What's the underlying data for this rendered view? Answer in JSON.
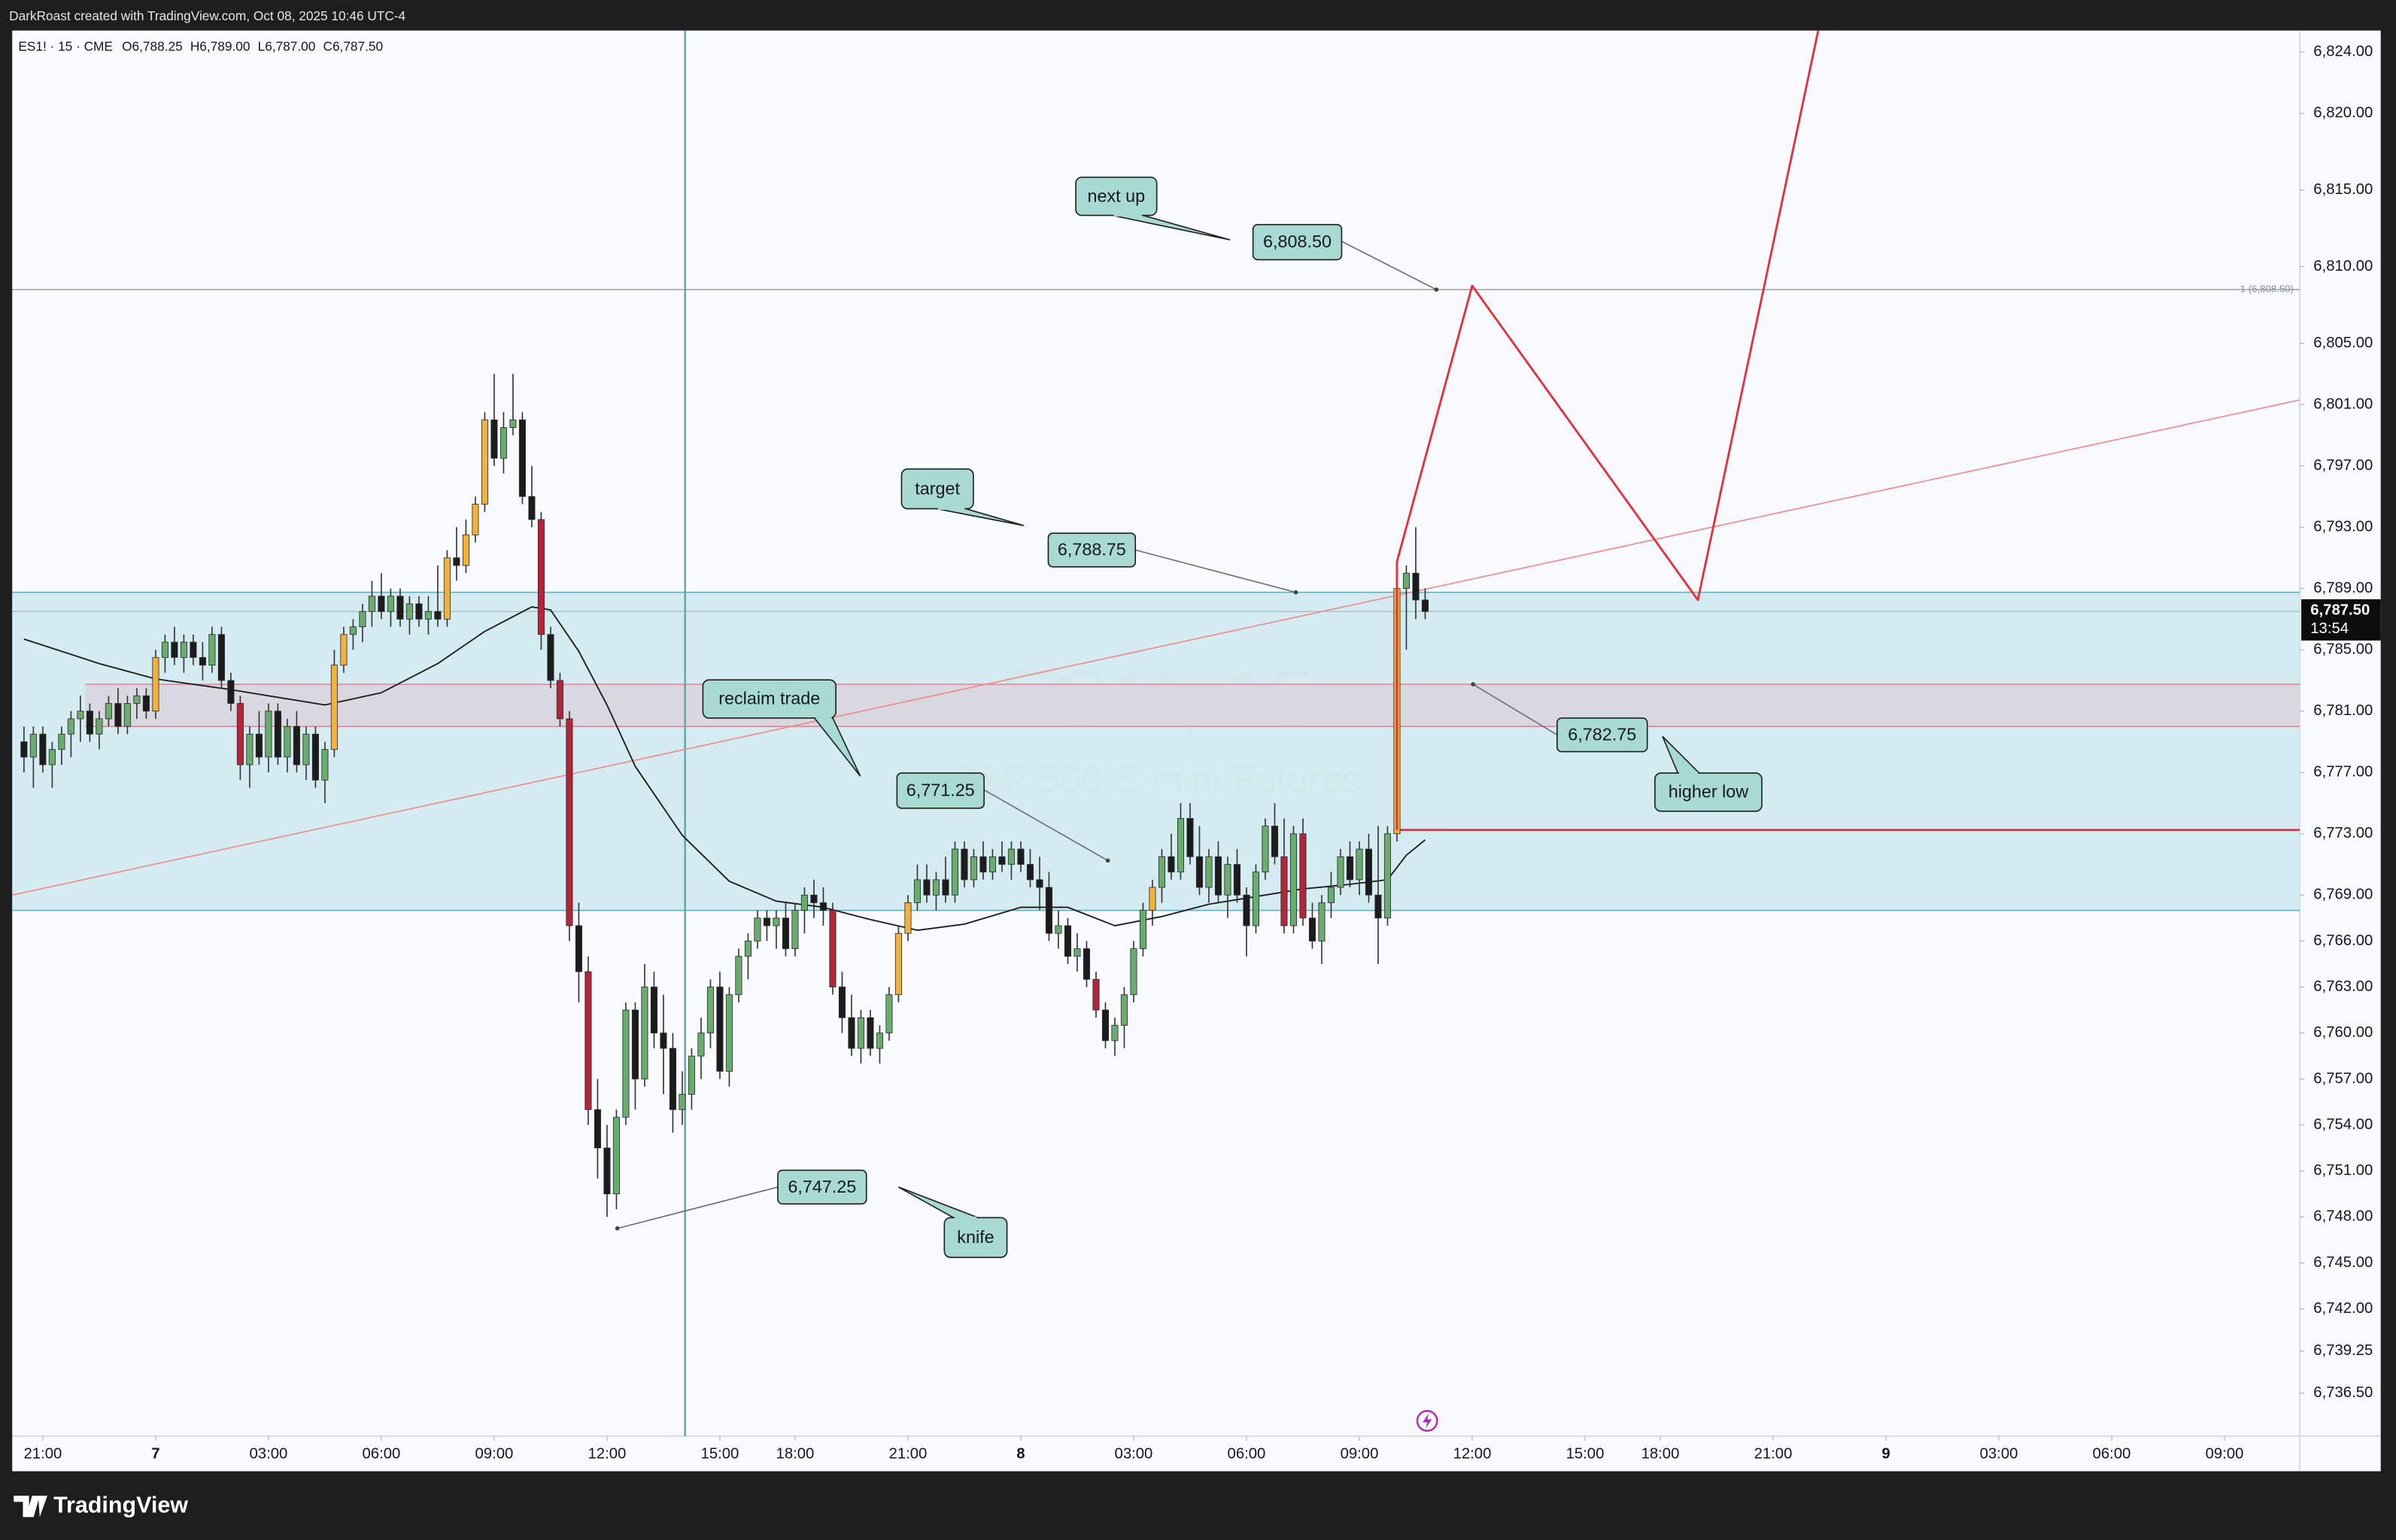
{
  "header": {
    "text": "DarkRoast created with TradingView.com, Oct 08, 2025 10:46 UTC-4"
  },
  "footer": {
    "brand": "TradingView"
  },
  "chart_data": {
    "type": "candlestick",
    "symbol_legend": "ES1! · 15 · CME",
    "ohlc_labels": [
      "O6,788.25",
      "H6,789.00",
      "L6,787.00",
      "C6,787.50"
    ],
    "watermark_symbol": "ES1!, 15",
    "watermark_name": "S&P 500 E-mini Futures",
    "up_color": "#6aab6e",
    "down_color": "#1c1c1c",
    "candles": [
      [
        6779,
        6780,
        6777,
        6778
      ],
      [
        6778,
        6780,
        6776,
        6779.5
      ],
      [
        6779.5,
        6780,
        6777,
        6777.5
      ],
      [
        6777.5,
        6779,
        6776,
        6778.5
      ],
      [
        6778.5,
        6780,
        6777.5,
        6779.5
      ],
      [
        6779.5,
        6781,
        6778,
        6780.5
      ],
      [
        6780.5,
        6782,
        6779,
        6781
      ],
      [
        6781,
        6781.5,
        6779,
        6779.5
      ],
      [
        6779.5,
        6781,
        6778.5,
        6780.5
      ],
      [
        6780.5,
        6782,
        6780,
        6781.5
      ],
      [
        6781.5,
        6782.5,
        6779.5,
        6780
      ],
      [
        6780,
        6782,
        6779.5,
        6781.5
      ],
      [
        6781.5,
        6782.5,
        6780.5,
        6782
      ],
      [
        6782,
        6782.5,
        6780.5,
        6781
      ],
      [
        6781,
        6785,
        6780.5,
        6784.5
      ],
      [
        6784.5,
        6786,
        6783.5,
        6785.5
      ],
      [
        6785.5,
        6786.5,
        6784,
        6784.5
      ],
      [
        6784.5,
        6786,
        6783.5,
        6785.5
      ],
      [
        6785.5,
        6786,
        6784,
        6784.5
      ],
      [
        6784.5,
        6785.5,
        6783,
        6784
      ],
      [
        6784,
        6786.5,
        6783.5,
        6786
      ],
      [
        6786,
        6786.5,
        6782.5,
        6783
      ],
      [
        6783,
        6783.5,
        6781,
        6781.5
      ],
      [
        6781.5,
        6782,
        6776.5,
        6777.5
      ],
      [
        6777.5,
        6780,
        6776,
        6779.5
      ],
      [
        6779.5,
        6781,
        6777.5,
        6778
      ],
      [
        6778,
        6781.5,
        6777,
        6781
      ],
      [
        6781,
        6781.5,
        6777.5,
        6778
      ],
      [
        6778,
        6780.5,
        6777,
        6780
      ],
      [
        6780,
        6781,
        6777,
        6777.5
      ],
      [
        6777.5,
        6780,
        6776.5,
        6779.5
      ],
      [
        6779.5,
        6780,
        6776,
        6776.5
      ],
      [
        6776.5,
        6779,
        6775,
        6778.5
      ],
      [
        6778.5,
        6785,
        6778,
        6784
      ],
      [
        6784,
        6786.5,
        6783.5,
        6786
      ],
      [
        6786,
        6787,
        6785,
        6786.5
      ],
      [
        6786.5,
        6788,
        6785.5,
        6787.5
      ],
      [
        6787.5,
        6789.5,
        6786.5,
        6788.5
      ],
      [
        6788.5,
        6790,
        6787,
        6787.5
      ],
      [
        6787.5,
        6789,
        6786.5,
        6788.5
      ],
      [
        6788.5,
        6789,
        6786.5,
        6787
      ],
      [
        6787,
        6788.5,
        6786,
        6788
      ],
      [
        6788,
        6788.5,
        6786.5,
        6787
      ],
      [
        6787,
        6788.5,
        6786,
        6787.5
      ],
      [
        6787.5,
        6790.5,
        6786.5,
        6787
      ],
      [
        6787,
        6791.5,
        6786.5,
        6791
      ],
      [
        6791,
        6793,
        6789.5,
        6790.5
      ],
      [
        6790.5,
        6793.5,
        6790,
        6792.5
      ],
      [
        6792.5,
        6795,
        6792,
        6794.5
      ],
      [
        6794.5,
        6800.5,
        6794,
        6800
      ],
      [
        6800,
        6803,
        6797,
        6797.5
      ],
      [
        6797.5,
        6800.5,
        6796.5,
        6799.5
      ],
      [
        6799.5,
        6803,
        6799,
        6800
      ],
      [
        6800,
        6800.5,
        6794.5,
        6795
      ],
      [
        6795,
        6797,
        6793,
        6793.5
      ],
      [
        6793.5,
        6794,
        6785,
        6786
      ],
      [
        6786,
        6786.5,
        6782.5,
        6783
      ],
      [
        6783,
        6783.5,
        6780,
        6780.5
      ],
      [
        6780.5,
        6781,
        6766,
        6767
      ],
      [
        6767,
        6768.5,
        6762,
        6764
      ],
      [
        6764,
        6765,
        6754,
        6755
      ],
      [
        6755,
        6757,
        6750.5,
        6752.5
      ],
      [
        6752.5,
        6754,
        6748,
        6749.5
      ],
      [
        6749.5,
        6755,
        6748.5,
        6754.5
      ],
      [
        6754.5,
        6762,
        6754,
        6761.5
      ],
      [
        6761.5,
        6762,
        6755,
        6757
      ],
      [
        6757,
        6764.5,
        6756.5,
        6763
      ],
      [
        6763,
        6764,
        6759,
        6760
      ],
      [
        6760,
        6762.5,
        6756,
        6759
      ],
      [
        6759,
        6760,
        6753.5,
        6755
      ],
      [
        6755,
        6757.5,
        6754,
        6756
      ],
      [
        6756,
        6759,
        6755,
        6758.5
      ],
      [
        6758.5,
        6761,
        6757,
        6760
      ],
      [
        6760,
        6763.5,
        6759,
        6763
      ],
      [
        6763,
        6764,
        6757,
        6757.5
      ],
      [
        6757.5,
        6763,
        6756.5,
        6762.5
      ],
      [
        6762.5,
        6765.5,
        6762,
        6765
      ],
      [
        6765,
        6766.5,
        6763.5,
        6766
      ],
      [
        6766,
        6768,
        6765.5,
        6767.5
      ],
      [
        6767.5,
        6768,
        6766,
        6767
      ],
      [
        6767,
        6768,
        6765.5,
        6767.5
      ],
      [
        6767.5,
        6768.5,
        6765,
        6765.5
      ],
      [
        6765.5,
        6768.5,
        6765,
        6768
      ],
      [
        6768,
        6769.5,
        6766.5,
        6769
      ],
      [
        6769,
        6770,
        6767.5,
        6768.5
      ],
      [
        6768.5,
        6769.5,
        6767,
        6768
      ],
      [
        6768,
        6768.5,
        6762.5,
        6763
      ],
      [
        6763,
        6764,
        6760,
        6761
      ],
      [
        6761,
        6762.5,
        6758.5,
        6759
      ],
      [
        6759,
        6761.5,
        6758,
        6761
      ],
      [
        6761,
        6761.5,
        6758.5,
        6759
      ],
      [
        6759,
        6760.5,
        6758,
        6760
      ],
      [
        6760,
        6763,
        6759.5,
        6762.5
      ],
      [
        6762.5,
        6767,
        6762,
        6766.5
      ],
      [
        6766.5,
        6769,
        6766,
        6768.5
      ],
      [
        6768.5,
        6771,
        6768,
        6770
      ],
      [
        6770,
        6771,
        6768.5,
        6769
      ],
      [
        6769,
        6770.5,
        6768,
        6770
      ],
      [
        6770,
        6771.5,
        6768.5,
        6769
      ],
      [
        6769,
        6772.5,
        6768.5,
        6772
      ],
      [
        6772,
        6772.5,
        6769.5,
        6770
      ],
      [
        6770,
        6772,
        6769.5,
        6771.5
      ],
      [
        6771.5,
        6772.5,
        6770,
        6770.5
      ],
      [
        6770.5,
        6772,
        6770,
        6771.5
      ],
      [
        6771.5,
        6772.5,
        6770.5,
        6771
      ],
      [
        6771,
        6772.5,
        6770,
        6772
      ],
      [
        6772,
        6772.5,
        6770.5,
        6771
      ],
      [
        6771,
        6772,
        6769.5,
        6770
      ],
      [
        6770,
        6771.5,
        6768,
        6769.5
      ],
      [
        6769.5,
        6770.5,
        6766,
        6766.5
      ],
      [
        6766.5,
        6768,
        6765.5,
        6767
      ],
      [
        6767,
        6767.5,
        6764.5,
        6765
      ],
      [
        6765,
        6766.5,
        6764,
        6765.5
      ],
      [
        6765.5,
        6766,
        6763,
        6763.5
      ],
      [
        6763.5,
        6764,
        6761,
        6761.5
      ],
      [
        6761.5,
        6762,
        6759,
        6759.5
      ],
      [
        6759.5,
        6761,
        6758.5,
        6760.5
      ],
      [
        6760.5,
        6763,
        6759,
        6762.5
      ],
      [
        6762.5,
        6766,
        6762,
        6765.5
      ],
      [
        6765.5,
        6768.5,
        6765,
        6768
      ],
      [
        6768,
        6770,
        6767,
        6769.5
      ],
      [
        6769.5,
        6772,
        6768.5,
        6771.5
      ],
      [
        6771.5,
        6773,
        6770,
        6770.5
      ],
      [
        6770.5,
        6775,
        6770,
        6774
      ],
      [
        6774,
        6775,
        6771,
        6771.5
      ],
      [
        6771.5,
        6773.5,
        6769,
        6769.5
      ],
      [
        6769.5,
        6772,
        6768.5,
        6771.5
      ],
      [
        6771.5,
        6772.5,
        6768.5,
        6769
      ],
      [
        6769,
        6771.5,
        6767.5,
        6771
      ],
      [
        6771,
        6772,
        6768.5,
        6769
      ],
      [
        6769,
        6769.5,
        6765,
        6767
      ],
      [
        6767,
        6771,
        6766.5,
        6770.5
      ],
      [
        6770.5,
        6774,
        6770,
        6773.5
      ],
      [
        6773.5,
        6775,
        6771,
        6771.5
      ],
      [
        6771.5,
        6774,
        6766.5,
        6767
      ],
      [
        6767,
        6773.5,
        6766.5,
        6773
      ],
      [
        6773,
        6774,
        6767,
        6767.5
      ],
      [
        6767.5,
        6768.5,
        6765.5,
        6766
      ],
      [
        6766,
        6769,
        6764.5,
        6768.5
      ],
      [
        6768.5,
        6770.5,
        6767.5,
        6769.5
      ],
      [
        6769.5,
        6772,
        6769,
        6771.5
      ],
      [
        6771.5,
        6772.5,
        6769.5,
        6770
      ],
      [
        6770,
        6772.5,
        6769,
        6772
      ],
      [
        6772,
        6773,
        6768.5,
        6769
      ],
      [
        6769,
        6773.5,
        6764.5,
        6767.5
      ],
      [
        6767.5,
        6773.5,
        6767,
        6773
      ],
      [
        6773,
        6790,
        6772.5,
        6789
      ],
      [
        6789,
        6790.5,
        6785,
        6790
      ],
      [
        6790,
        6793,
        6787,
        6788.25
      ],
      [
        6788.25,
        6789,
        6787,
        6787.5
      ]
    ],
    "candle_colors": [
      null,
      null,
      null,
      null,
      null,
      null,
      null,
      null,
      null,
      null,
      null,
      null,
      null,
      null,
      "#f0b23a",
      null,
      null,
      null,
      null,
      null,
      null,
      null,
      null,
      "#b3263a",
      null,
      null,
      null,
      null,
      null,
      null,
      null,
      null,
      null,
      "#f0b23a",
      "#f0b23a",
      null,
      null,
      null,
      null,
      null,
      null,
      null,
      null,
      null,
      null,
      "#f0b23a",
      null,
      "#f0b23a",
      "#f0b23a",
      "#f0b23a",
      null,
      null,
      null,
      null,
      null,
      "#b3263a",
      null,
      "#b3263a",
      "#b3263a",
      null,
      "#b3263a",
      null,
      null,
      null,
      null,
      null,
      null,
      null,
      null,
      null,
      null,
      null,
      null,
      null,
      null,
      null,
      null,
      null,
      null,
      null,
      null,
      null,
      null,
      null,
      null,
      null,
      "#b3263a",
      null,
      null,
      null,
      null,
      null,
      null,
      "#f0b23a",
      "#f0b23a",
      null,
      null,
      null,
      null,
      null,
      null,
      null,
      null,
      null,
      null,
      null,
      null,
      null,
      null,
      null,
      null,
      null,
      null,
      null,
      "#b3263a",
      null,
      null,
      null,
      null,
      null,
      "#f0b23a",
      null,
      null,
      null,
      null,
      null,
      null,
      null,
      null,
      null,
      null,
      null,
      null,
      null,
      "#b3263a",
      null,
      "#b3263a",
      null,
      null,
      null,
      null,
      null,
      null,
      null,
      null,
      null,
      "#f0b23a",
      null,
      null,
      null
    ],
    "xlim": [
      -1.25,
      242
    ],
    "xticks": [
      {
        "value": 2,
        "label": "21:00"
      },
      {
        "value": 14,
        "label": "7"
      },
      {
        "value": 26,
        "label": "03:00"
      },
      {
        "value": 38,
        "label": "06:00"
      },
      {
        "value": 50,
        "label": "09:00"
      },
      {
        "value": 62,
        "label": "12:00"
      },
      {
        "value": 74,
        "label": "15:00"
      },
      {
        "value": 82,
        "label": "18:00"
      },
      {
        "value": 94,
        "label": "21:00"
      },
      {
        "value": 106,
        "label": "8"
      },
      {
        "value": 118,
        "label": "03:00"
      },
      {
        "value": 130,
        "label": "06:00"
      },
      {
        "value": 142,
        "label": "09:00"
      },
      {
        "value": 154,
        "label": "12:00"
      },
      {
        "value": 166,
        "label": "15:00"
      },
      {
        "value": 174,
        "label": "18:00"
      },
      {
        "value": 186,
        "label": "21:00"
      },
      {
        "value": 198,
        "label": "9"
      },
      {
        "value": 210,
        "label": "03:00"
      },
      {
        "value": 222,
        "label": "06:00"
      },
      {
        "value": 234,
        "label": "09:00"
      }
    ],
    "ylim": [
      6733.7,
      6825.4
    ],
    "yticks": [
      {
        "value": 6824,
        "label": "6,824.00"
      },
      {
        "value": 6820,
        "label": "6,820.00"
      },
      {
        "value": 6815,
        "label": "6,815.00"
      },
      {
        "value": 6810,
        "label": "6,810.00"
      },
      {
        "value": 6805,
        "label": "6,805.00"
      },
      {
        "value": 6801,
        "label": "6,801.00"
      },
      {
        "value": 6797,
        "label": "6,797.00"
      },
      {
        "value": 6793,
        "label": "6,793.00"
      },
      {
        "value": 6789,
        "label": "6,789.00"
      },
      {
        "value": 6785,
        "label": "6,785.00"
      },
      {
        "value": 6781,
        "label": "6,781.00"
      },
      {
        "value": 6777,
        "label": "6,777.00"
      },
      {
        "value": 6773,
        "label": "6,773.00"
      },
      {
        "value": 6769,
        "label": "6,769.00"
      },
      {
        "value": 6766,
        "label": "6,766.00"
      },
      {
        "value": 6763,
        "label": "6,763.00"
      },
      {
        "value": 6760,
        "label": "6,760.00"
      },
      {
        "value": 6757,
        "label": "6,757.00"
      },
      {
        "value": 6754,
        "label": "6,754.00"
      },
      {
        "value": 6751,
        "label": "6,751.00"
      },
      {
        "value": 6748,
        "label": "6,748.00"
      },
      {
        "value": 6745,
        "label": "6,745.00"
      },
      {
        "value": 6742,
        "label": "6,742.00"
      },
      {
        "value": 6739.25,
        "label": "6,739.25"
      },
      {
        "value": 6736.5,
        "label": "6,736.50"
      }
    ],
    "moving_average": {
      "color": "#1a1a1a",
      "x": [
        0,
        8,
        14,
        22,
        32,
        38,
        44,
        49,
        54,
        56,
        59,
        62,
        65,
        70,
        75,
        80,
        85,
        90,
        95,
        100,
        106,
        111,
        116,
        121,
        126,
        131,
        136,
        141,
        145,
        147,
        149
      ],
      "values": [
        6785.7,
        6784.1,
        6783.1,
        6782.4,
        6781.4,
        6782.2,
        6784.1,
        6786.2,
        6787.8,
        6787.6,
        6784.9,
        6781.4,
        6777.4,
        6772.9,
        6769.9,
        6768.6,
        6768.2,
        6767.4,
        6766.7,
        6767.1,
        6768.2,
        6768.2,
        6767,
        6767.6,
        6768.4,
        6768.9,
        6769.4,
        6769.7,
        6770,
        6771.6,
        6772.6
      ]
    },
    "last_price": {
      "value": 6787.5,
      "label": "6,787.50",
      "countdown": "13:54"
    },
    "zones": [
      {
        "top": 6788.75,
        "bottom": 6768,
        "x_start": -1.25,
        "fill": "#cde8ef",
        "border": "#5fb3c0"
      },
      {
        "top": 6782.75,
        "bottom": 6780,
        "x_start": 6.5,
        "fill": "#d9d3dc",
        "border": "#d98a95"
      }
    ],
    "horizontal_lines": [
      {
        "value": 6808.5,
        "x_start": -1.25,
        "color": "#9aa0a8",
        "label": "1 (6,808.50)"
      },
      {
        "value": 6773.25,
        "x_start": 146,
        "color": "#e0323c"
      }
    ],
    "vertical_line": {
      "x": 70.3,
      "color": "#5aa7a7"
    },
    "trendline": {
      "color": "#f08a8a",
      "x": [
        -1.25,
        242
      ],
      "values": [
        6769,
        6801.3
      ]
    },
    "forecast_path": {
      "color": "#e0323c",
      "x": [
        146,
        146,
        154,
        178,
        191
      ],
      "values": [
        6773.25,
        6790.75,
        6808.75,
        6788.25,
        6826
      ]
    },
    "callouts": [
      "next up",
      "target",
      "reclaim trade",
      "higher low",
      "knife"
    ],
    "price_labels": [
      {
        "value": 6808.5,
        "label": "6,808.50"
      },
      {
        "value": 6788.75,
        "label": "6,788.75"
      },
      {
        "value": 6771.25,
        "label": "6,771.25"
      },
      {
        "value": 6782.75,
        "label": "6,782.75"
      },
      {
        "value": 6747.25,
        "label": "6,747.25"
      }
    ]
  }
}
